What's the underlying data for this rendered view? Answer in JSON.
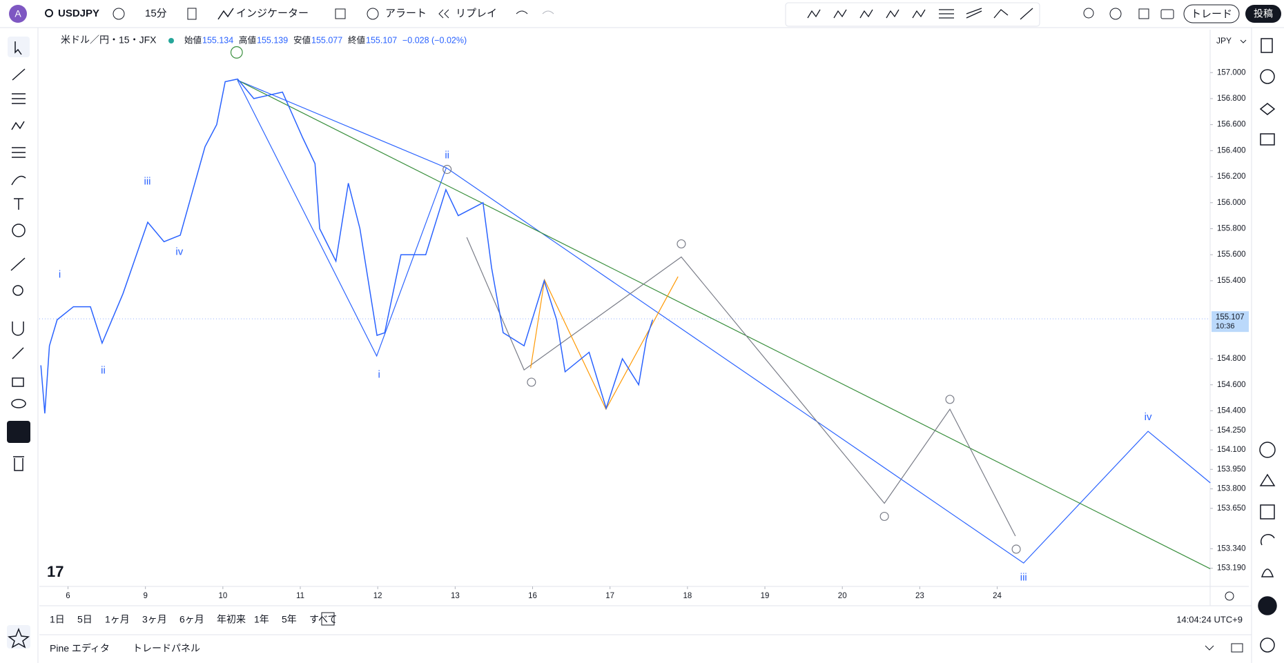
{
  "toolbar": {
    "avatar": "A",
    "symbol": "USDJPY",
    "interval": "15分",
    "indicators": "インジケーター",
    "alert": "アラート",
    "replay": "リプレイ",
    "trade": "トレード",
    "publish": "投稿"
  },
  "legend": {
    "name": "米ドル／円・15・JFX",
    "open_label": "始値",
    "open": "155.134",
    "high_label": "高値",
    "high": "155.139",
    "low_label": "安値",
    "low": "155.077",
    "close_label": "終値",
    "close": "155.107",
    "change": "−0.028 (−0.02%)"
  },
  "price_axis": {
    "currency": "JPY",
    "ylim": [
      153.05,
      157.33
    ],
    "yticks": [
      {
        "value": 157,
        "label": "157.000"
      },
      {
        "value": 156.8,
        "label": "156.800"
      },
      {
        "value": 156.6,
        "label": "156.600"
      },
      {
        "value": 156.4,
        "label": "156.400"
      },
      {
        "value": 156.2,
        "label": "156.200"
      },
      {
        "value": 156,
        "label": "156.000"
      },
      {
        "value": 155.8,
        "label": "155.800"
      },
      {
        "value": 155.6,
        "label": "155.600"
      },
      {
        "value": 155.4,
        "label": "155.400"
      },
      {
        "value": 154.8,
        "label": "154.800"
      },
      {
        "value": 154.6,
        "label": "154.600"
      },
      {
        "value": 154.4,
        "label": "154.400"
      },
      {
        "value": 154.25,
        "label": "154.250"
      },
      {
        "value": 154.1,
        "label": "154.100"
      },
      {
        "value": 153.95,
        "label": "153.950"
      },
      {
        "value": 153.8,
        "label": "153.800"
      },
      {
        "value": 153.65,
        "label": "153.650"
      },
      {
        "value": 153.34,
        "label": "153.340"
      },
      {
        "value": 153.19,
        "label": "153.190"
      }
    ],
    "current_price": {
      "value": 155.107,
      "label": "155.107"
    },
    "countdown": "10:36"
  },
  "time_axis": {
    "xlim": [
      -0.37,
      14.75
    ],
    "xticks": [
      {
        "value": 0,
        "label": "6"
      },
      {
        "value": 1,
        "label": "9"
      },
      {
        "value": 2,
        "label": "10"
      },
      {
        "value": 3,
        "label": "11"
      },
      {
        "value": 4,
        "label": "12"
      },
      {
        "value": 5,
        "label": "13"
      },
      {
        "value": 6,
        "label": "16"
      },
      {
        "value": 7,
        "label": "17"
      },
      {
        "value": 8,
        "label": "18"
      },
      {
        "value": 9,
        "label": "19"
      },
      {
        "value": 10,
        "label": "20"
      },
      {
        "value": 11,
        "label": "23"
      },
      {
        "value": 12,
        "label": "24"
      }
    ]
  },
  "price": {
    "color": "#2962ff",
    "x": [
      -0.35,
      -0.3,
      -0.24,
      -0.14,
      0.07,
      0.29,
      0.44,
      0.71,
      1.03,
      1.24,
      1.45,
      1.77,
      1.92,
      2.03,
      2.19,
      2.4,
      2.77,
      3.03,
      3.19,
      3.25,
      3.46,
      3.62,
      3.77,
      3.99,
      4.09,
      4.3,
      4.62,
      4.88,
      5.04,
      5.36,
      5.47,
      5.62,
      5.89,
      6.15,
      6.31,
      6.42,
      6.73,
      6.95,
      7.16,
      7.37,
      7.47,
      7.55
    ],
    "values": [
      154.75,
      154.38,
      154.9,
      155.1,
      155.2,
      155.2,
      154.92,
      155.3,
      155.85,
      155.7,
      155.75,
      156.43,
      156.6,
      156.93,
      156.95,
      156.8,
      156.85,
      156.5,
      156.3,
      155.8,
      155.55,
      156.15,
      155.8,
      154.98,
      155.0,
      155.6,
      155.6,
      156.1,
      155.9,
      156.0,
      155.5,
      155.0,
      154.9,
      155.4,
      155.1,
      154.7,
      154.85,
      154.42,
      154.8,
      154.6,
      154.95,
      155.1
    ]
  },
  "wave_labels": [
    "iii",
    "iv",
    "i",
    "ii",
    "ii",
    "i",
    "iii",
    "iv"
  ],
  "ranges": [
    "1日",
    "5日",
    "1ヶ月",
    "3ヶ月",
    "6ヶ月",
    "年初来",
    "1年",
    "5年",
    "すべて"
  ],
  "clock": "14:04:24 UTC+9",
  "panels": [
    "Pine エディタ",
    "トレードパネル"
  ]
}
